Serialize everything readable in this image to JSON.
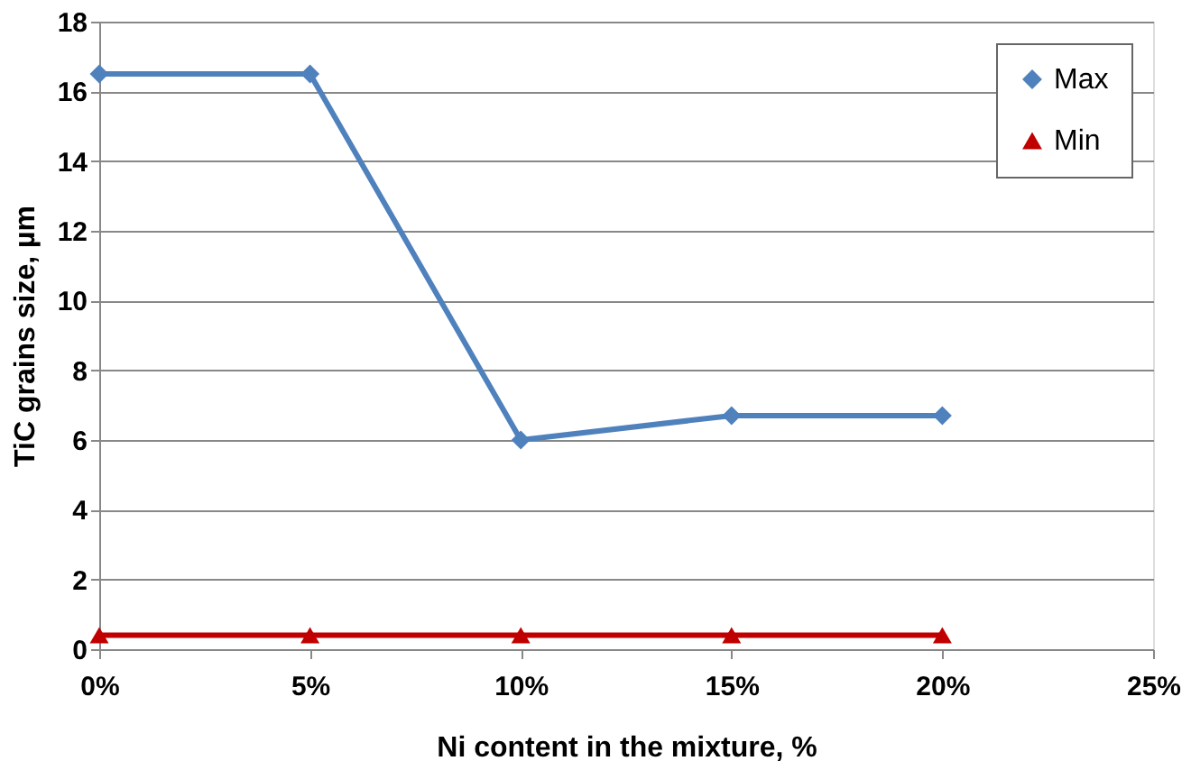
{
  "chart_data": {
    "type": "line",
    "xlabel": "Ni content in the mixture, %",
    "ylabel": "TiC grains size, µm",
    "x": [
      0,
      5,
      10,
      15,
      20
    ],
    "series": [
      {
        "name": "Max",
        "color": "#4f81bd",
        "values": [
          16.5,
          16.5,
          6.0,
          6.7,
          6.7
        ],
        "marker": "diamond"
      },
      {
        "name": "Min",
        "color": "#c00000",
        "values": [
          0.4,
          0.4,
          0.4,
          0.4,
          0.4
        ],
        "marker": "triangle"
      }
    ],
    "xlim": [
      0,
      25
    ],
    "xticks": [
      {
        "value": 0,
        "label": "0%"
      },
      {
        "value": 5,
        "label": "5%"
      },
      {
        "value": 10,
        "label": "10%"
      },
      {
        "value": 15,
        "label": "15%"
      },
      {
        "value": 20,
        "label": "20%"
      },
      {
        "value": 25,
        "label": "25%"
      }
    ],
    "ylim": [
      0,
      18
    ],
    "yticks": [
      0,
      2,
      4,
      6,
      8,
      10,
      12,
      14,
      16,
      18
    ],
    "grid": "y",
    "legend": "top right",
    "line_style": "solid"
  }
}
